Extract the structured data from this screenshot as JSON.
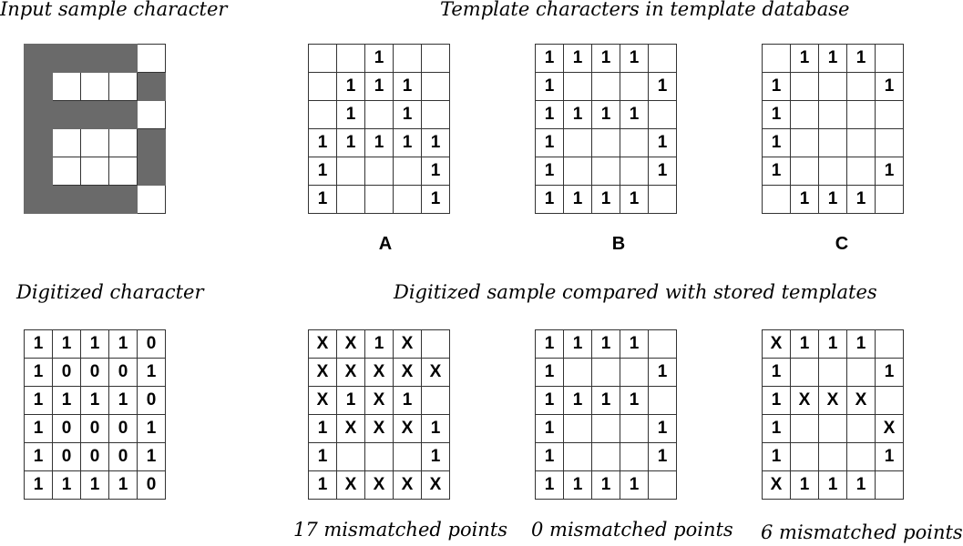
{
  "titles": {
    "input_sample": "Input sample character",
    "template_db": "Template characters in template database",
    "digitized": "Digitized character",
    "compared": "Digitized sample compared with stored templates"
  },
  "input_grid": [
    [
      1,
      1,
      1,
      1,
      0
    ],
    [
      1,
      0,
      0,
      0,
      1
    ],
    [
      1,
      1,
      1,
      1,
      0
    ],
    [
      1,
      0,
      0,
      0,
      1
    ],
    [
      1,
      0,
      0,
      0,
      1
    ],
    [
      1,
      1,
      1,
      1,
      0
    ]
  ],
  "templates": [
    {
      "letter": "A",
      "grid": [
        [
          "",
          "",
          "1",
          "",
          ""
        ],
        [
          "",
          "1",
          "1",
          "1",
          ""
        ],
        [
          "",
          "1",
          "",
          "1",
          ""
        ],
        [
          "1",
          "1",
          "1",
          "1",
          "1"
        ],
        [
          "1",
          "",
          "",
          "",
          "1"
        ],
        [
          "1",
          "",
          "",
          "",
          "1"
        ]
      ]
    },
    {
      "letter": "B",
      "grid": [
        [
          "1",
          "1",
          "1",
          "1",
          ""
        ],
        [
          "1",
          "",
          "",
          "",
          "1"
        ],
        [
          "1",
          "1",
          "1",
          "1",
          ""
        ],
        [
          "1",
          "",
          "",
          "",
          "1"
        ],
        [
          "1",
          "",
          "",
          "",
          "1"
        ],
        [
          "1",
          "1",
          "1",
          "1",
          ""
        ]
      ]
    },
    {
      "letter": "C",
      "grid": [
        [
          "",
          "1",
          "1",
          "1",
          ""
        ],
        [
          "1",
          "",
          "",
          "",
          "1"
        ],
        [
          "1",
          "",
          "",
          "",
          ""
        ],
        [
          "1",
          "",
          "",
          "",
          ""
        ],
        [
          "1",
          "",
          "",
          "",
          "1"
        ],
        [
          "",
          "1",
          "1",
          "1",
          ""
        ]
      ]
    }
  ],
  "digitized_grid": [
    [
      "1",
      "1",
      "1",
      "1",
      "0"
    ],
    [
      "1",
      "0",
      "0",
      "0",
      "1"
    ],
    [
      "1",
      "1",
      "1",
      "1",
      "0"
    ],
    [
      "1",
      "0",
      "0",
      "0",
      "1"
    ],
    [
      "1",
      "0",
      "0",
      "0",
      "1"
    ],
    [
      "1",
      "1",
      "1",
      "1",
      "0"
    ]
  ],
  "comparisons": [
    {
      "caption": "17 mismatched points",
      "grid": [
        [
          "X",
          "X",
          "1",
          "X",
          ""
        ],
        [
          "X",
          "X",
          "X",
          "X",
          "X"
        ],
        [
          "X",
          "1",
          "X",
          "1",
          ""
        ],
        [
          "1",
          "X",
          "X",
          "X",
          "1"
        ],
        [
          "1",
          "",
          "",
          "",
          "1"
        ],
        [
          "1",
          "X",
          "X",
          "X",
          "X"
        ]
      ]
    },
    {
      "caption": "0 mismatched points",
      "grid": [
        [
          "1",
          "1",
          "1",
          "1",
          ""
        ],
        [
          "1",
          "",
          "",
          "",
          "1"
        ],
        [
          "1",
          "1",
          "1",
          "1",
          ""
        ],
        [
          "1",
          "",
          "",
          "",
          "1"
        ],
        [
          "1",
          "",
          "",
          "",
          "1"
        ],
        [
          "1",
          "1",
          "1",
          "1",
          ""
        ]
      ]
    },
    {
      "caption": "6 mismatched points",
      "grid": [
        [
          "X",
          "1",
          "1",
          "1",
          ""
        ],
        [
          "1",
          "",
          "",
          "",
          "1"
        ],
        [
          "1",
          "X",
          "X",
          "X",
          ""
        ],
        [
          "1",
          "",
          "",
          "",
          "X"
        ],
        [
          "1",
          "",
          "",
          "",
          "1"
        ],
        [
          "X",
          "1",
          "1",
          "1",
          ""
        ]
      ]
    }
  ]
}
